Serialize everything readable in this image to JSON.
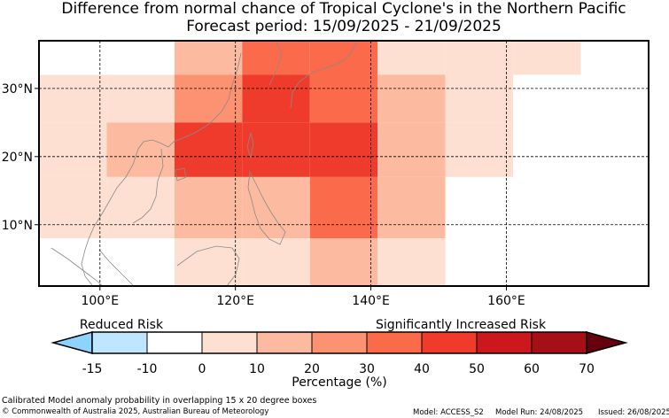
{
  "title": "Difference from normal chance of Tropical Cyclone's in the Northern Pacific",
  "subtitle": "Forecast period: 15/09/2025 - 21/09/2025",
  "chart_data": {
    "type": "heatmap",
    "x_unit": "degrees East",
    "y_unit": "degrees North",
    "xlim": [
      91,
      181
    ],
    "ylim": [
      1,
      37
    ],
    "xticks": [
      100,
      120,
      140,
      160
    ],
    "xtick_labels": [
      "100°E",
      "120°E",
      "140°E",
      "160°E"
    ],
    "yticks": [
      10,
      20,
      30
    ],
    "ytick_labels": [
      "10°N",
      "20°N",
      "30°N"
    ],
    "gridlines": "dashed",
    "cells": [
      {
        "x0": 91,
        "x1": 101,
        "y0": 32,
        "y1": 37,
        "value": -10
      },
      {
        "x0": 101,
        "x1": 111,
        "y0": 32,
        "y1": 37,
        "value": -5
      },
      {
        "x0": 111,
        "x1": 121,
        "y0": 32,
        "y1": 37,
        "value": 15
      },
      {
        "x0": 121,
        "x1": 131,
        "y0": 32,
        "y1": 37,
        "value": 35
      },
      {
        "x0": 131,
        "x1": 141,
        "y0": 32,
        "y1": 37,
        "value": 35
      },
      {
        "x0": 141,
        "x1": 151,
        "y0": 32,
        "y1": 37,
        "value": 5
      },
      {
        "x0": 151,
        "x1": 161,
        "y0": 32,
        "y1": 37,
        "value": 5
      },
      {
        "x0": 161,
        "x1": 171,
        "y0": 32,
        "y1": 37,
        "value": 0
      },
      {
        "x0": 171,
        "x1": 181,
        "y0": 32,
        "y1": 37,
        "value": -5
      },
      {
        "x0": 91,
        "x1": 101,
        "y0": 25,
        "y1": 32,
        "value": 0
      },
      {
        "x0": 101,
        "x1": 111,
        "y0": 25,
        "y1": 32,
        "value": 5
      },
      {
        "x0": 111,
        "x1": 121,
        "y0": 25,
        "y1": 32,
        "value": 25
      },
      {
        "x0": 121,
        "x1": 131,
        "y0": 25,
        "y1": 32,
        "value": 45
      },
      {
        "x0": 131,
        "x1": 141,
        "y0": 25,
        "y1": 32,
        "value": 35
      },
      {
        "x0": 141,
        "x1": 151,
        "y0": 25,
        "y1": 32,
        "value": 15
      },
      {
        "x0": 151,
        "x1": 161,
        "y0": 25,
        "y1": 32,
        "value": 0
      },
      {
        "x0": 161,
        "x1": 171,
        "y0": 25,
        "y1": 32,
        "value": -5
      },
      {
        "x0": 171,
        "x1": 181,
        "y0": 25,
        "y1": 32,
        "value": -5
      },
      {
        "x0": 91,
        "x1": 101,
        "y0": 17,
        "y1": 25,
        "value": 5
      },
      {
        "x0": 101,
        "x1": 111,
        "y0": 17,
        "y1": 25,
        "value": 15
      },
      {
        "x0": 111,
        "x1": 121,
        "y0": 17,
        "y1": 25,
        "value": 45
      },
      {
        "x0": 121,
        "x1": 131,
        "y0": 17,
        "y1": 25,
        "value": 45
      },
      {
        "x0": 131,
        "x1": 141,
        "y0": 17,
        "y1": 25,
        "value": 45
      },
      {
        "x0": 141,
        "x1": 151,
        "y0": 17,
        "y1": 25,
        "value": 15
      },
      {
        "x0": 151,
        "x1": 161,
        "y0": 17,
        "y1": 25,
        "value": 0
      },
      {
        "x0": 161,
        "x1": 171,
        "y0": 17,
        "y1": 25,
        "value": -5
      },
      {
        "x0": 171,
        "x1": 181,
        "y0": 17,
        "y1": 25,
        "value": -10
      },
      {
        "x0": 91,
        "x1": 101,
        "y0": 8,
        "y1": 17,
        "value": 0
      },
      {
        "x0": 101,
        "x1": 111,
        "y0": 8,
        "y1": 17,
        "value": 0
      },
      {
        "x0": 111,
        "x1": 121,
        "y0": 8,
        "y1": 17,
        "value": 15
      },
      {
        "x0": 121,
        "x1": 131,
        "y0": 8,
        "y1": 17,
        "value": 15
      },
      {
        "x0": 131,
        "x1": 141,
        "y0": 8,
        "y1": 17,
        "value": 35
      },
      {
        "x0": 141,
        "x1": 151,
        "y0": 8,
        "y1": 17,
        "value": 15
      },
      {
        "x0": 151,
        "x1": 161,
        "y0": 8,
        "y1": 17,
        "value": -5
      },
      {
        "x0": 161,
        "x1": 171,
        "y0": 8,
        "y1": 17,
        "value": -10
      },
      {
        "x0": 171,
        "x1": 181,
        "y0": 8,
        "y1": 17,
        "value": -10
      },
      {
        "x0": 91,
        "x1": 101,
        "y0": 1,
        "y1": 8,
        "value": -10
      },
      {
        "x0": 101,
        "x1": 111,
        "y0": 1,
        "y1": 8,
        "value": -10
      },
      {
        "x0": 111,
        "x1": 121,
        "y0": 1,
        "y1": 8,
        "value": 0
      },
      {
        "x0": 121,
        "x1": 131,
        "y0": 1,
        "y1": 8,
        "value": 5
      },
      {
        "x0": 131,
        "x1": 141,
        "y0": 1,
        "y1": 8,
        "value": 15
      },
      {
        "x0": 141,
        "x1": 151,
        "y0": 1,
        "y1": 8,
        "value": 5
      },
      {
        "x0": 151,
        "x1": 161,
        "y0": 1,
        "y1": 8,
        "value": -10
      },
      {
        "x0": 161,
        "x1": 171,
        "y0": 1,
        "y1": 8,
        "value": -10
      },
      {
        "x0": 171,
        "x1": 181,
        "y0": 1,
        "y1": 8,
        "value": -10
      }
    ],
    "colorbar": {
      "boundaries": [
        -15,
        -10,
        0,
        10,
        20,
        30,
        40,
        50,
        60,
        70
      ],
      "tick_labels": [
        "-15",
        "-10",
        "0",
        "10",
        "20",
        "30",
        "40",
        "50",
        "60",
        "70"
      ],
      "colors": [
        "#bfe6ff",
        "#ffffff",
        "#fee0d2",
        "#fcbba1",
        "#fc9272",
        "#fb6a4a",
        "#ef3b2c",
        "#cb181d",
        "#a50f15"
      ],
      "under_color": "#8dd3ff",
      "over_color": "#67000d",
      "extend": "both",
      "label": "Percentage (%)",
      "left_caption": "Reduced Risk",
      "right_caption": "Significantly Increased Risk"
    }
  },
  "footer": {
    "description": "Calibrated Model anomaly probability in overlapping 15 x 20 degree boxes",
    "copyright": "© Commonwealth of Australia 2025, Australian Bureau of Meteorology",
    "model": "Model: ACCESS_S2",
    "model_run": "Model Run: 24/08/2025",
    "issued": "Issued: 26/08/2025"
  }
}
